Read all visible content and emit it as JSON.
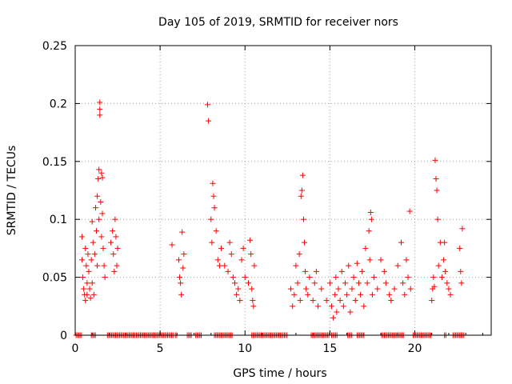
{
  "chart_data": {
    "type": "scatter",
    "title": "Day 105 of 2019, SRMTID for receiver nors",
    "xlabel": "GPS time / hours",
    "ylabel": "SRMTID / TECUs",
    "xlim": [
      0,
      24.5
    ],
    "ylim": [
      0,
      0.25
    ],
    "x_ticks": [
      0,
      5,
      10,
      15,
      20
    ],
    "y_ticks": [
      0,
      0.05,
      0.1,
      0.15,
      0.2,
      0.25
    ],
    "x_tick_labels": [
      "0",
      "5",
      "10",
      "15",
      "20"
    ],
    "y_tick_labels": [
      "0",
      "0.05",
      "0.1",
      "0.15",
      "0.2",
      "0.25"
    ],
    "grid": true,
    "marker": "+",
    "series": [
      {
        "name": "SRMTID",
        "color": "#ff0000",
        "points": [
          [
            0.4,
            0.085
          ],
          [
            0.4,
            0.065
          ],
          [
            0.45,
            0.05
          ],
          [
            0.5,
            0.04
          ],
          [
            0.55,
            0.035
          ],
          [
            0.6,
            0.03
          ],
          [
            0.6,
            0.075
          ],
          [
            0.65,
            0.06
          ],
          [
            0.7,
            0.045
          ],
          [
            0.7,
            0.035
          ],
          [
            0.75,
            0.07
          ],
          [
            0.8,
            0.055
          ],
          [
            0.85,
            0.04
          ],
          [
            0.9,
            0.032
          ],
          [
            0.95,
            0.065
          ],
          [
            1.0,
            0.098
          ],
          [
            1.0,
            0.045
          ],
          [
            1.05,
            0.08
          ],
          [
            1.1,
            0.035
          ],
          [
            1.15,
            0.07
          ],
          [
            1.2,
            0.11
          ],
          [
            1.25,
            0.09
          ],
          [
            1.3,
            0.12
          ],
          [
            1.3,
            0.06
          ],
          [
            1.35,
            0.135
          ],
          [
            1.4,
            0.143
          ],
          [
            1.4,
            0.1
          ],
          [
            1.45,
            0.201
          ],
          [
            1.45,
            0.195
          ],
          [
            1.45,
            0.19
          ],
          [
            1.5,
            0.115
          ],
          [
            1.55,
            0.14
          ],
          [
            1.55,
            0.085
          ],
          [
            1.6,
            0.136
          ],
          [
            1.6,
            0.105
          ],
          [
            1.65,
            0.075
          ],
          [
            1.7,
            0.06
          ],
          [
            1.75,
            0.05
          ],
          [
            2.1,
            0.08
          ],
          [
            2.2,
            0.09
          ],
          [
            2.25,
            0.07
          ],
          [
            2.3,
            0.055
          ],
          [
            2.35,
            0.1
          ],
          [
            2.4,
            0.085
          ],
          [
            2.45,
            0.06
          ],
          [
            2.5,
            0.075
          ],
          [
            5.7,
            0.078
          ],
          [
            6.1,
            0.065
          ],
          [
            6.15,
            0.05
          ],
          [
            6.2,
            0.045
          ],
          [
            6.25,
            0.035
          ],
          [
            6.3,
            0.089
          ],
          [
            6.35,
            0.058
          ],
          [
            6.4,
            0.07
          ],
          [
            7.8,
            0.199
          ],
          [
            7.85,
            0.185
          ],
          [
            8.0,
            0.1
          ],
          [
            8.05,
            0.08
          ],
          [
            8.1,
            0.131
          ],
          [
            8.15,
            0.12
          ],
          [
            8.2,
            0.11
          ],
          [
            8.3,
            0.09
          ],
          [
            8.4,
            0.065
          ],
          [
            8.5,
            0.06
          ],
          [
            8.6,
            0.075
          ],
          [
            8.8,
            0.06
          ],
          [
            9.0,
            0.055
          ],
          [
            9.1,
            0.08
          ],
          [
            9.2,
            0.07
          ],
          [
            9.3,
            0.05
          ],
          [
            9.4,
            0.045
          ],
          [
            9.5,
            0.035
          ],
          [
            9.6,
            0.04
          ],
          [
            9.7,
            0.03
          ],
          [
            9.8,
            0.065
          ],
          [
            9.9,
            0.075
          ],
          [
            10.0,
            0.05
          ],
          [
            10.2,
            0.045
          ],
          [
            10.3,
            0.082
          ],
          [
            10.35,
            0.07
          ],
          [
            10.4,
            0.04
          ],
          [
            10.45,
            0.03
          ],
          [
            10.5,
            0.025
          ],
          [
            10.55,
            0.06
          ],
          [
            12.7,
            0.04
          ],
          [
            12.8,
            0.025
          ],
          [
            12.9,
            0.035
          ],
          [
            13.0,
            0.06
          ],
          [
            13.1,
            0.045
          ],
          [
            13.2,
            0.07
          ],
          [
            13.25,
            0.03
          ],
          [
            13.3,
            0.12
          ],
          [
            13.35,
            0.125
          ],
          [
            13.4,
            0.138
          ],
          [
            13.45,
            0.1
          ],
          [
            13.5,
            0.08
          ],
          [
            13.55,
            0.055
          ],
          [
            13.6,
            0.04
          ],
          [
            13.7,
            0.035
          ],
          [
            13.8,
            0.05
          ],
          [
            14.0,
            0.03
          ],
          [
            14.1,
            0.045
          ],
          [
            14.2,
            0.055
          ],
          [
            14.3,
            0.025
          ],
          [
            14.5,
            0.04
          ],
          [
            14.8,
            0.03
          ],
          [
            15.0,
            0.045
          ],
          [
            15.1,
            0.025
          ],
          [
            15.2,
            0.015
          ],
          [
            15.3,
            0.035
          ],
          [
            15.35,
            0.05
          ],
          [
            15.4,
            0.02
          ],
          [
            15.5,
            0.04
          ],
          [
            15.6,
            0.03
          ],
          [
            15.7,
            0.055
          ],
          [
            15.8,
            0.025
          ],
          [
            15.9,
            0.045
          ],
          [
            16.0,
            0.035
          ],
          [
            16.1,
            0.06
          ],
          [
            16.2,
            0.02
          ],
          [
            16.3,
            0.04
          ],
          [
            16.4,
            0.05
          ],
          [
            16.5,
            0.03
          ],
          [
            16.6,
            0.062
          ],
          [
            16.7,
            0.045
          ],
          [
            16.8,
            0.035
          ],
          [
            16.9,
            0.055
          ],
          [
            17.0,
            0.025
          ],
          [
            17.1,
            0.075
          ],
          [
            17.2,
            0.045
          ],
          [
            17.3,
            0.09
          ],
          [
            17.35,
            0.065
          ],
          [
            17.4,
            0.106
          ],
          [
            17.45,
            0.1
          ],
          [
            17.5,
            0.035
          ],
          [
            17.6,
            0.05
          ],
          [
            17.8,
            0.04
          ],
          [
            18.0,
            0.065
          ],
          [
            18.2,
            0.055
          ],
          [
            18.3,
            0.045
          ],
          [
            18.5,
            0.035
          ],
          [
            18.6,
            0.03
          ],
          [
            18.8,
            0.04
          ],
          [
            19.0,
            0.06
          ],
          [
            19.2,
            0.08
          ],
          [
            19.3,
            0.045
          ],
          [
            19.4,
            0.035
          ],
          [
            19.5,
            0.065
          ],
          [
            19.6,
            0.05
          ],
          [
            19.7,
            0.107
          ],
          [
            19.75,
            0.04
          ],
          [
            21.0,
            0.03
          ],
          [
            21.05,
            0.04
          ],
          [
            21.1,
            0.05
          ],
          [
            21.15,
            0.042
          ],
          [
            21.2,
            0.151
          ],
          [
            21.25,
            0.135
          ],
          [
            21.3,
            0.125
          ],
          [
            21.35,
            0.1
          ],
          [
            21.4,
            0.06
          ],
          [
            21.5,
            0.08
          ],
          [
            21.6,
            0.05
          ],
          [
            21.7,
            0.065
          ],
          [
            21.75,
            0.08
          ],
          [
            21.8,
            0.055
          ],
          [
            21.9,
            0.045
          ],
          [
            22.0,
            0.04
          ],
          [
            22.1,
            0.035
          ],
          [
            22.65,
            0.075
          ],
          [
            22.7,
            0.055
          ],
          [
            22.75,
            0.045
          ],
          [
            22.8,
            0.092
          ]
        ]
      }
    ],
    "zero_segments": [
      [
        0.05,
        0.4
      ],
      [
        0.95,
        1.2
      ],
      [
        1.9,
        3.5
      ],
      [
        3.6,
        5.8
      ],
      [
        5.9,
        6.05
      ],
      [
        6.6,
        6.9
      ],
      [
        7.1,
        7.45
      ],
      [
        8.2,
        9.3
      ],
      [
        10.4,
        12.5
      ],
      [
        13.9,
        15.0
      ],
      [
        15.1,
        15.45
      ],
      [
        16.05,
        16.35
      ],
      [
        16.6,
        17.0
      ],
      [
        18.05,
        19.4
      ],
      [
        19.9,
        21.0
      ],
      [
        21.75,
        21.9
      ],
      [
        22.25,
        22.9
      ]
    ]
  }
}
